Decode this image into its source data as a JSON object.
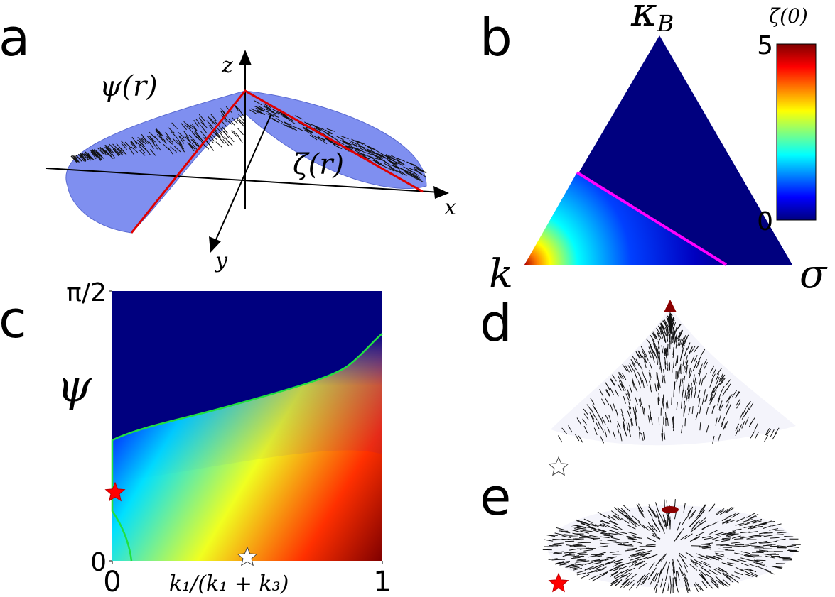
{
  "panels": {
    "a": {
      "label": "a",
      "surface_labels": [
        "ψ(r)",
        "ζ(r)"
      ],
      "axis_names": {
        "z": "z",
        "x": "x",
        "y": "y"
      }
    },
    "b": {
      "label": "b",
      "corners": {
        "top": {
          "symbol": "κ",
          "subscript": "B"
        },
        "left": "k",
        "right": "σ"
      },
      "colorbar": {
        "title": "ζ(0)",
        "lim": [
          0,
          5
        ],
        "ticks": [
          0,
          5
        ]
      }
    },
    "c": {
      "label": "c",
      "xlabel": "k₁/(k₁ + k₃)",
      "ylabel": "ψ",
      "xlim": [
        0,
        1
      ],
      "xticks": [
        0,
        1
      ],
      "ylim": [
        0,
        1.5708
      ],
      "yticks": [
        0,
        {
          "value": 1.5708,
          "label": "π/2"
        }
      ]
    },
    "d": {
      "label": "d"
    },
    "e": {
      "label": "e"
    }
  }
}
